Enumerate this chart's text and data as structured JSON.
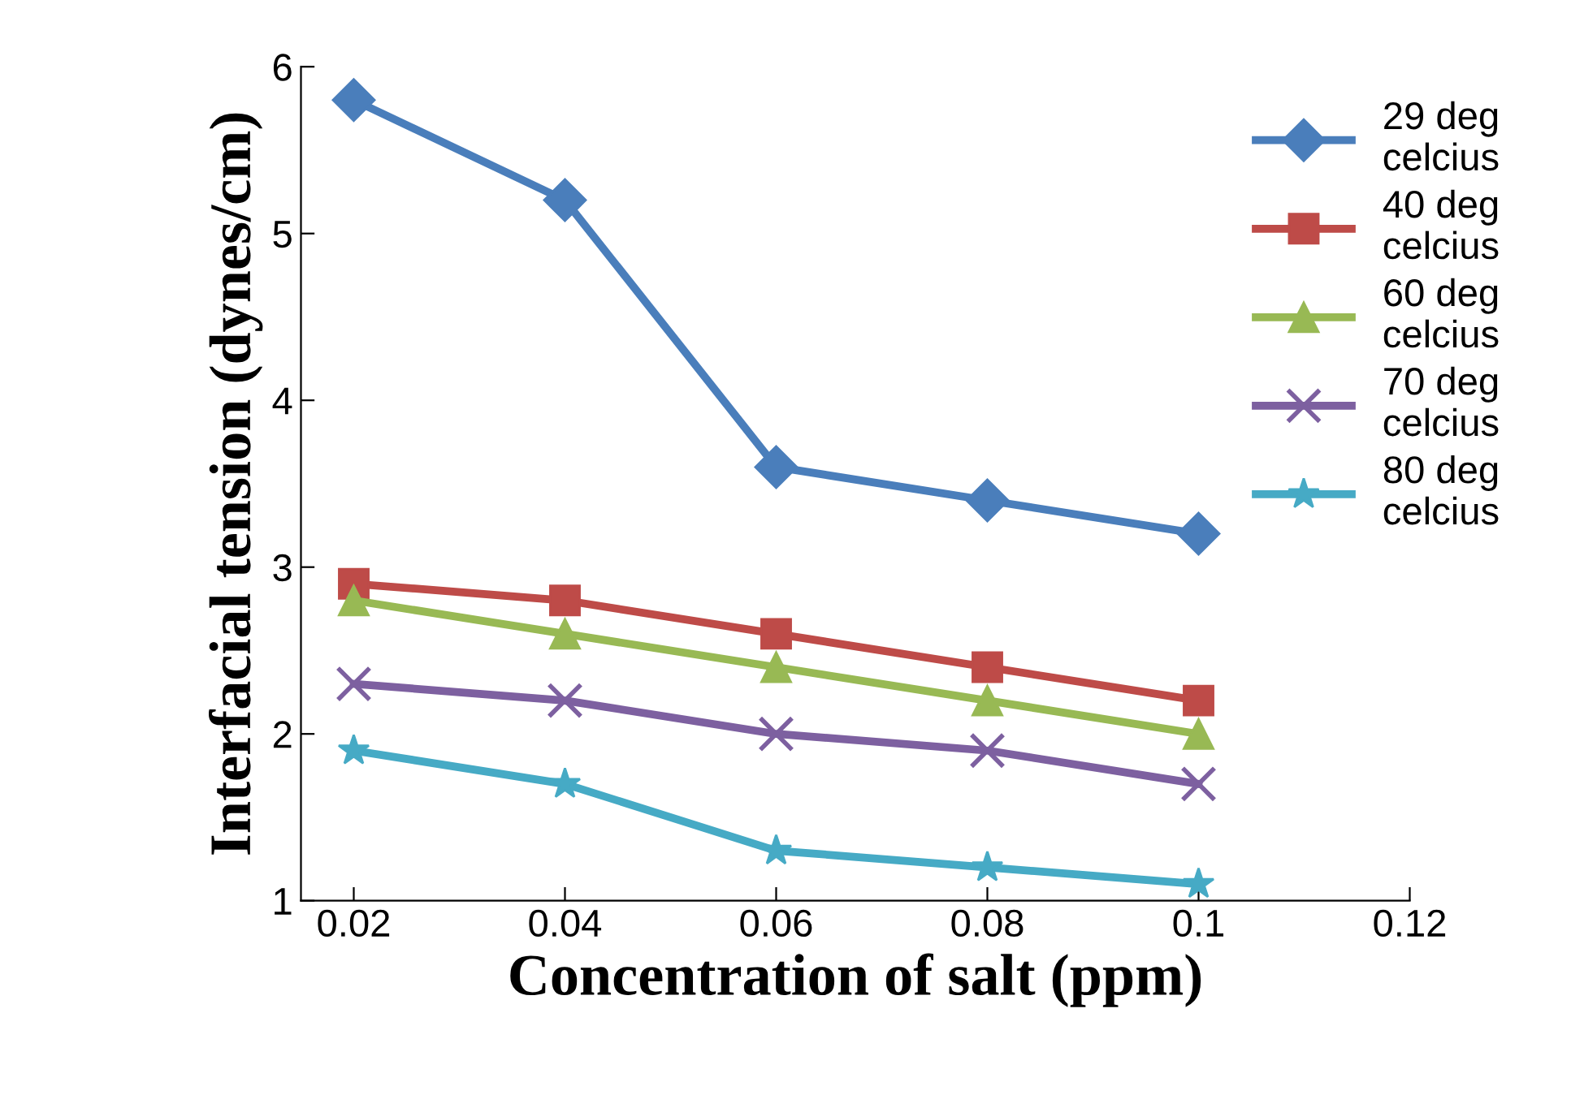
{
  "chart_data": {
    "type": "line",
    "xlabel": "Concentration of salt (ppm)",
    "ylabel": "Interfacial tension (dynes/cm)",
    "x": [
      0.02,
      0.04,
      0.06,
      0.08,
      0.1
    ],
    "series": [
      {
        "name": "29 deg celcius",
        "color": "#4a7ebb",
        "marker": "diamond",
        "values": [
          5.8,
          5.2,
          3.6,
          3.4,
          3.2
        ]
      },
      {
        "name": "40 deg celcius",
        "color": "#be4b48",
        "marker": "square",
        "values": [
          2.9,
          2.8,
          2.6,
          2.4,
          2.2
        ]
      },
      {
        "name": "60 deg celcius",
        "color": "#98b954",
        "marker": "triangle",
        "values": [
          2.8,
          2.6,
          2.4,
          2.2,
          2.0
        ]
      },
      {
        "name": "70 deg celcius",
        "color": "#7d60a0",
        "marker": "cross",
        "values": [
          2.3,
          2.2,
          2.0,
          1.9,
          1.7
        ]
      },
      {
        "name": "80 deg celcius",
        "color": "#46aac5",
        "marker": "star",
        "values": [
          1.9,
          1.7,
          1.3,
          1.2,
          1.1
        ]
      }
    ],
    "xlim": [
      0.015,
      0.12
    ],
    "xticks": [
      0.02,
      0.04,
      0.06,
      0.08,
      0.1,
      0.12
    ],
    "ylim": [
      1,
      6
    ],
    "yticks": [
      1,
      2,
      3,
      4,
      5,
      6
    ],
    "grid": false,
    "legend": "right"
  }
}
